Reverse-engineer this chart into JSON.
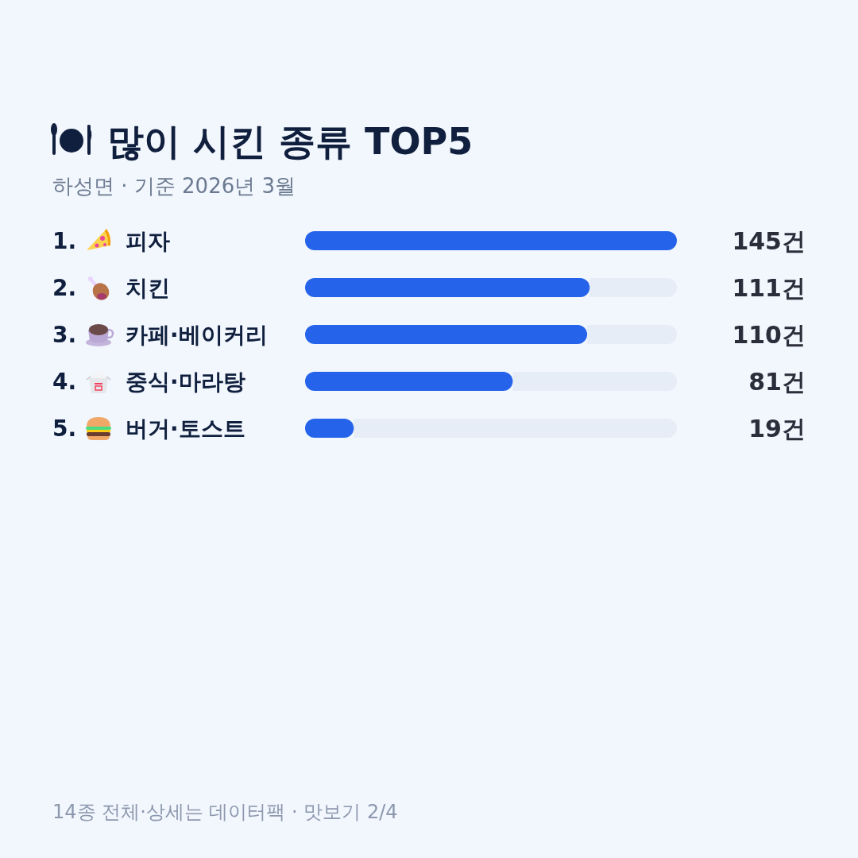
{
  "chart_data": {
    "type": "bar",
    "orientation": "horizontal",
    "title": "많이 시킨 종류 TOP5",
    "subtitle": "하성면 · 기준 2026년 3월",
    "categories": [
      "1. 피자",
      "2. 치킨",
      "3. 카페·베이커리",
      "4. 중식·마라탕",
      "5. 버거·토스트"
    ],
    "values": [
      145,
      111,
      110,
      81,
      19
    ],
    "value_labels": [
      "145건",
      "111건",
      "110건",
      "81건",
      "19건"
    ],
    "color": "#2563eb",
    "tick_labels": "y",
    "annotations": [
      "14종 전체·상세는 데이터팩 · 맛보기 2/4"
    ]
  }
}
